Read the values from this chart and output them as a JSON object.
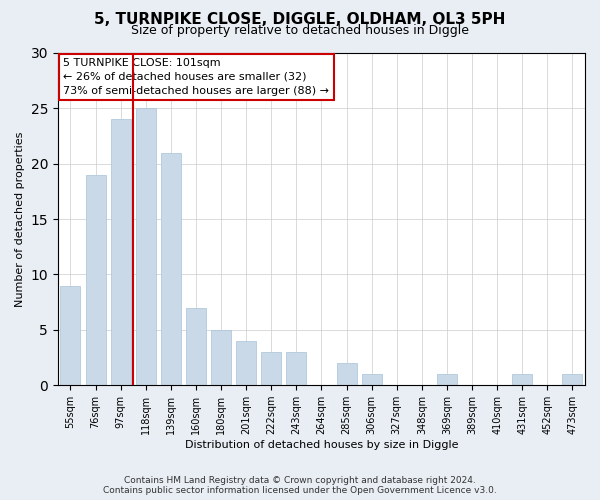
{
  "title": "5, TURNPIKE CLOSE, DIGGLE, OLDHAM, OL3 5PH",
  "subtitle": "Size of property relative to detached houses in Diggle",
  "xlabel": "Distribution of detached houses by size in Diggle",
  "ylabel": "Number of detached properties",
  "categories": [
    "55sqm",
    "76sqm",
    "97sqm",
    "118sqm",
    "139sqm",
    "160sqm",
    "180sqm",
    "201sqm",
    "222sqm",
    "243sqm",
    "264sqm",
    "285sqm",
    "306sqm",
    "327sqm",
    "348sqm",
    "369sqm",
    "389sqm",
    "410sqm",
    "431sqm",
    "452sqm",
    "473sqm"
  ],
  "values": [
    9,
    19,
    24,
    25,
    21,
    7,
    5,
    4,
    3,
    3,
    0,
    2,
    1,
    0,
    0,
    1,
    0,
    0,
    1,
    0,
    1
  ],
  "bar_color": "#c9d9e8",
  "bar_edgecolor": "#a8c4d8",
  "vline_color": "#cc0000",
  "vline_x": 2.5,
  "annotation_line1": "5 TURNPIKE CLOSE: 101sqm",
  "annotation_line2": "← 26% of detached houses are smaller (32)",
  "annotation_line3": "73% of semi-detached houses are larger (88) →",
  "annotation_box_edgecolor": "#cc0000",
  "annotation_box_facecolor": "#ffffff",
  "ylim": [
    0,
    30
  ],
  "yticks": [
    0,
    5,
    10,
    15,
    20,
    25,
    30
  ],
  "footer": "Contains HM Land Registry data © Crown copyright and database right 2024.\nContains public sector information licensed under the Open Government Licence v3.0.",
  "background_color": "#e8eef4",
  "plot_background": "#ffffff",
  "title_fontsize": 11,
  "subtitle_fontsize": 9,
  "axis_label_fontsize": 8,
  "tick_fontsize": 7,
  "annotation_fontsize": 8,
  "footer_fontsize": 6.5
}
